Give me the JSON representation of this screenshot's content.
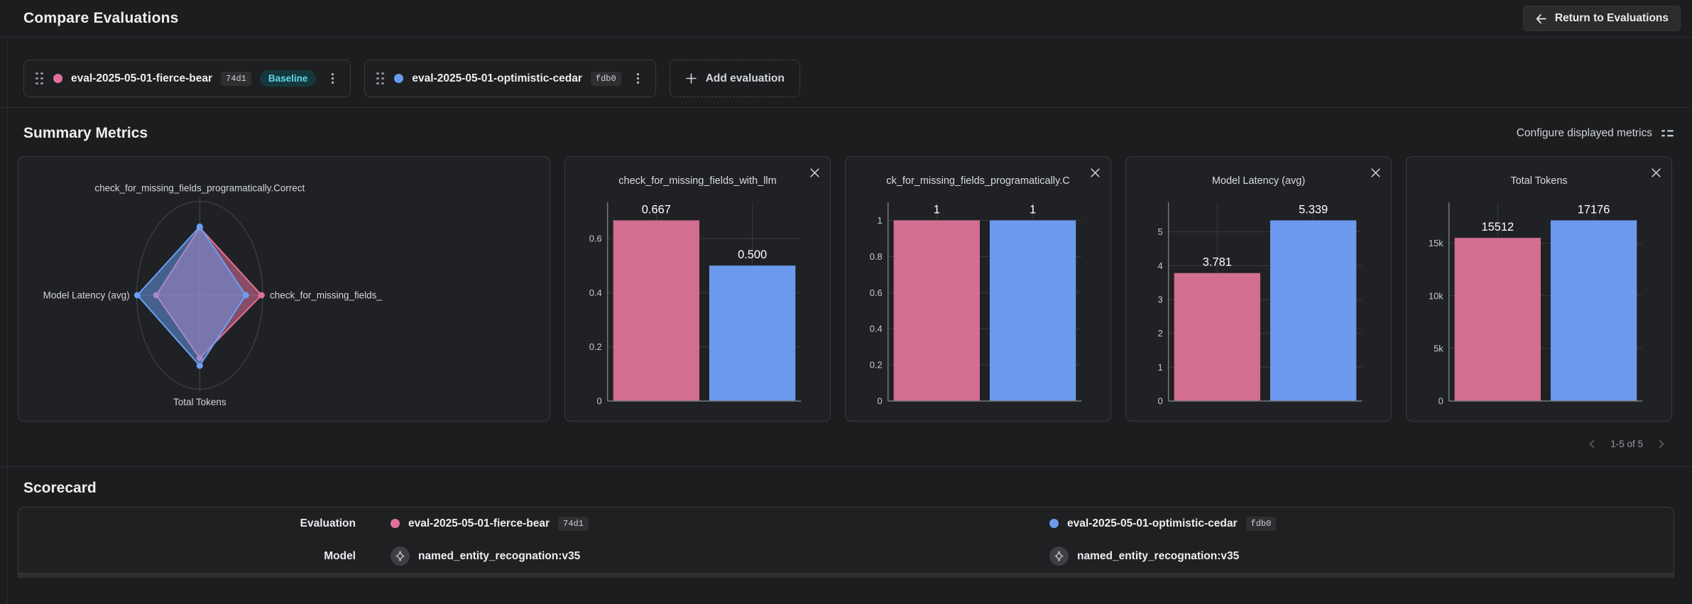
{
  "header": {
    "title": "Compare Evaluations",
    "return_label": "Return to Evaluations"
  },
  "evaluations": [
    {
      "name": "eval-2025-05-01-fierce-bear",
      "id": "74d1",
      "baseline_label": "Baseline",
      "color": "#e0709b"
    },
    {
      "name": "eval-2025-05-01-optimistic-cedar",
      "id": "fdb0",
      "color": "#6b9aef"
    }
  ],
  "labels": {
    "add_evaluation": "Add evaluation"
  },
  "summary": {
    "title": "Summary Metrics",
    "configure_label": "Configure displayed metrics",
    "pagination": "1-5 of 5"
  },
  "colors": {
    "pink": "#e0709b",
    "blue": "#6b9aef",
    "pink_bar": "#d26e90",
    "blue_bar": "#6b9aef",
    "grid": "#3a3b3d",
    "axis": "#77797c",
    "ring": "#47484b",
    "tick_text": "#c6c9cc",
    "label_text": "#d3d6d9",
    "value_text": "#ffffff",
    "baseline_badge_bg": "#14383e",
    "baseline_badge_text": "#63d6e5"
  },
  "chart_data": [
    {
      "type": "radar",
      "axes": [
        "check_for_missing_fields_programatically.Correct",
        "check_for_missing_fields_",
        "Total Tokens",
        "Model Latency (avg)"
      ],
      "series": [
        {
          "name": "eval-2025-05-01-fierce-bear",
          "color": "#e0719a",
          "values": [
            1,
            0.667,
            15512,
            3.781
          ],
          "fractions": [
            0.72,
            0.98,
            0.67,
            0.69
          ]
        },
        {
          "name": "eval-2025-05-01-optimistic-cedar",
          "color": "#69a0f5",
          "values": [
            1,
            0.5,
            17176,
            5.339
          ],
          "fractions": [
            0.73,
            0.73,
            0.75,
            0.99
          ]
        }
      ],
      "legend": "none",
      "grid": "single-ring"
    },
    {
      "type": "bar",
      "title": "check_for_missing_fields_with_llm",
      "categories": [
        "eval-2025-05-01-fierce-bear",
        "eval-2025-05-01-optimistic-cedar"
      ],
      "values": [
        0.667,
        0.5
      ],
      "value_labels": [
        "0.667",
        "0.500"
      ],
      "yticks": [
        0,
        0.2,
        0.4,
        0.6
      ],
      "ytick_labels": [
        "0",
        "0.2",
        "0.4",
        "0.6"
      ],
      "ymax": 0.7337
    },
    {
      "type": "bar",
      "title": "ck_for_missing_fields_programatically.C",
      "categories": [
        "eval-2025-05-01-fierce-bear",
        "eval-2025-05-01-optimistic-cedar"
      ],
      "values": [
        1,
        1
      ],
      "value_labels": [
        "1",
        "1"
      ],
      "yticks": [
        0,
        0.2,
        0.4,
        0.6,
        0.8,
        1
      ],
      "ytick_labels": [
        "0",
        "0.2",
        "0.4",
        "0.6",
        "0.8",
        "1"
      ],
      "ymax": 1.1
    },
    {
      "type": "bar",
      "title": "Model Latency (avg)",
      "categories": [
        "eval-2025-05-01-fierce-bear",
        "eval-2025-05-01-optimistic-cedar"
      ],
      "values": [
        3.781,
        5.339
      ],
      "value_labels": [
        "3.781",
        "5.339"
      ],
      "yticks": [
        0,
        1,
        2,
        3,
        4,
        5
      ],
      "ytick_labels": [
        "0",
        "1",
        "2",
        "3",
        "4",
        "5"
      ],
      "ymax": 5.873
    },
    {
      "type": "bar",
      "title": "Total Tokens",
      "categories": [
        "eval-2025-05-01-fierce-bear",
        "eval-2025-05-01-optimistic-cedar"
      ],
      "values": [
        15512,
        17176
      ],
      "value_labels": [
        "15512",
        "17176"
      ],
      "yticks": [
        0,
        5000,
        10000,
        15000
      ],
      "ytick_labels": [
        "0",
        "5k",
        "10k",
        "15k"
      ],
      "ymax": 18894
    }
  ],
  "scorecard": {
    "title": "Scorecard",
    "row_labels": {
      "evaluation": "Evaluation",
      "model": "Model"
    },
    "models": [
      "named_entity_recognation:v35",
      "named_entity_recognation:v35"
    ]
  }
}
